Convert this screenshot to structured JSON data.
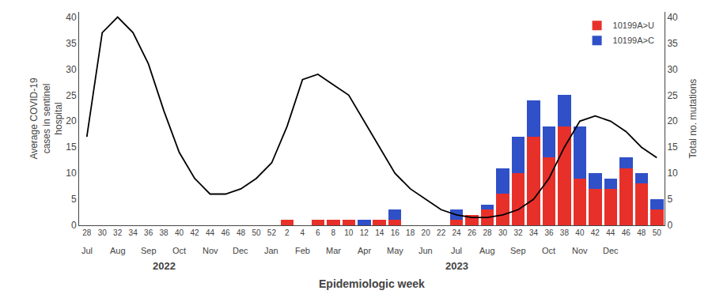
{
  "chart_data": {
    "type": "bar",
    "stacked": true,
    "xlabel": "Epidemiologic week",
    "ylabel": "Average COVID-19\ncases in sentinel\nhospital",
    "y2label": "Total no. mutations",
    "categories": [
      28,
      30,
      32,
      34,
      36,
      38,
      40,
      42,
      44,
      46,
      48,
      50,
      52,
      2,
      4,
      6,
      8,
      10,
      12,
      14,
      16,
      18,
      20,
      22,
      24,
      26,
      28,
      30,
      32,
      34,
      36,
      38,
      40,
      42,
      44,
      46,
      48,
      50
    ],
    "series": [
      {
        "name": "10199A>U",
        "color": "#e8302a",
        "axis": "y2",
        "values": [
          0,
          0,
          0,
          0,
          0,
          0,
          0,
          0,
          0,
          0,
          0,
          0,
          0,
          1,
          0,
          1,
          1,
          1,
          0,
          1,
          1,
          0,
          0,
          0,
          1,
          2,
          3,
          6,
          10,
          17,
          13,
          19,
          9,
          7,
          7,
          11,
          8,
          3
        ]
      },
      {
        "name": "10199A>C",
        "color": "#3050c8",
        "axis": "y2",
        "values": [
          0,
          0,
          0,
          0,
          0,
          0,
          0,
          0,
          0,
          0,
          0,
          0,
          0,
          0,
          0,
          0,
          0,
          0,
          1,
          0,
          2,
          0,
          0,
          0,
          2,
          0,
          1,
          5,
          7,
          7,
          6,
          6,
          10,
          3,
          2,
          2,
          2,
          2
        ]
      },
      {
        "type": "line",
        "color": "#000000",
        "values": [
          17,
          37,
          40,
          37,
          31,
          22,
          14,
          9,
          6,
          6,
          7,
          9,
          12,
          19,
          28,
          29,
          27,
          25,
          20,
          15,
          10,
          7,
          5,
          3,
          2,
          1.5,
          1.5,
          2,
          3,
          5,
          9,
          15,
          20,
          21,
          20,
          18,
          15,
          13
        ]
      }
    ],
    "ylim": [
      0,
      41
    ],
    "yticks": [
      0,
      5,
      10,
      15,
      20,
      25,
      30,
      35,
      40
    ],
    "y2lim": [
      0,
      41
    ],
    "y2ticks": [
      0,
      5,
      10,
      15,
      20,
      25,
      30,
      35,
      40
    ],
    "annotations": [
      {
        "text": "Jul",
        "x": 0
      },
      {
        "text": "Aug",
        "x": 2
      },
      {
        "text": "Sep",
        "x": 4
      },
      {
        "text": "Oct",
        "x": 6
      },
      {
        "text": "Nov",
        "x": 8
      },
      {
        "text": "Dec",
        "x": 10
      },
      {
        "text": "Jan",
        "x": 12
      },
      {
        "text": "Feb",
        "x": 14
      },
      {
        "text": "Mar",
        "x": 16
      },
      {
        "text": "Apr",
        "x": 18
      },
      {
        "text": "May",
        "x": 20
      },
      {
        "text": "Jun",
        "x": 22
      },
      {
        "text": "Jul",
        "x": 24
      },
      {
        "text": "Aug",
        "x": 26
      },
      {
        "text": "Sep",
        "x": 28
      },
      {
        "text": "Oct",
        "x": 30
      },
      {
        "text": "Nov",
        "x": 32
      },
      {
        "text": "Dec",
        "x": 34
      }
    ],
    "year_labels": [
      {
        "text": "2022",
        "x": 5
      },
      {
        "text": "2023",
        "x": 24
      }
    ],
    "legend": "upper right",
    "grid": false
  }
}
